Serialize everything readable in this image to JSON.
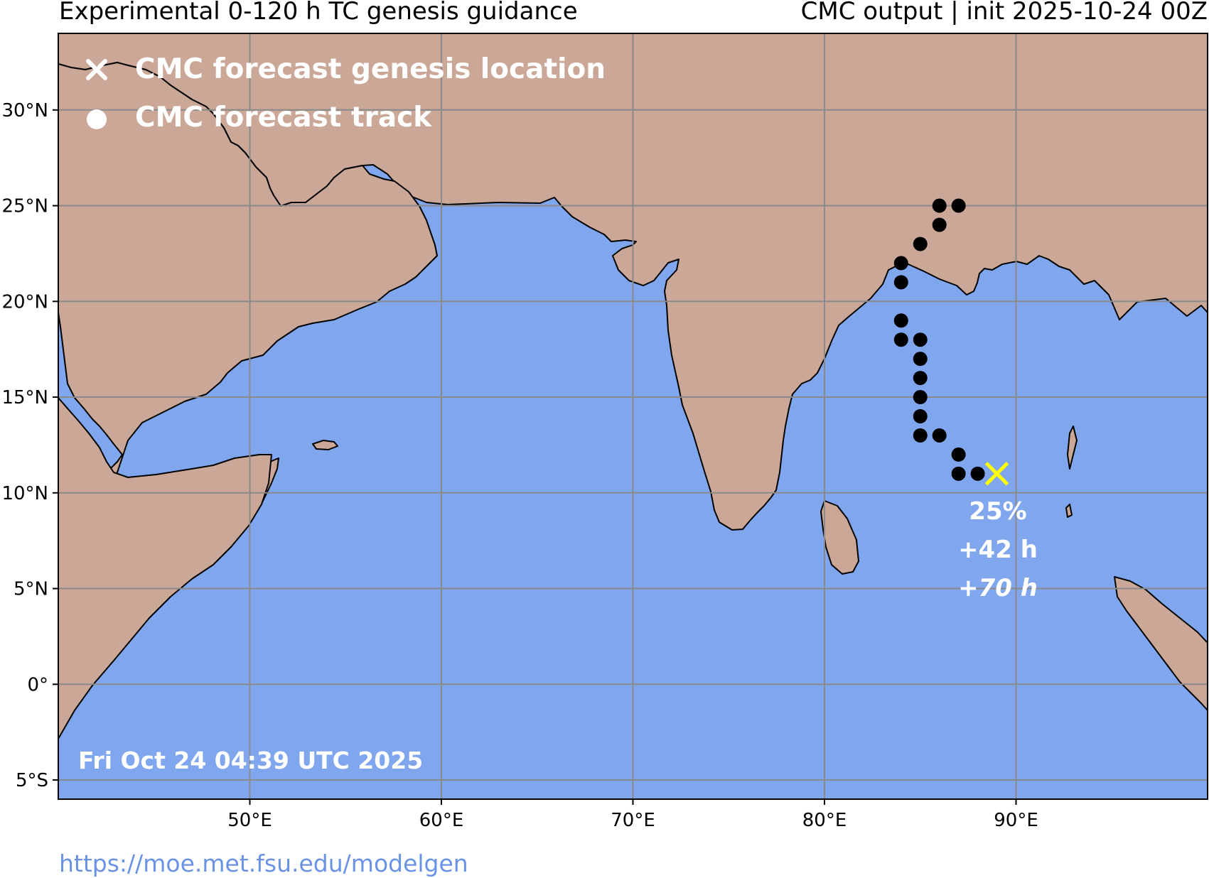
{
  "header": {
    "title_left": "Experimental 0-120 h TC genesis guidance",
    "title_right": "CMC output | init 2025-10-24 00Z"
  },
  "footer": {
    "url": "https://moe.met.fsu.edu/modelgen"
  },
  "colors": {
    "ocean": "#80a6ee",
    "land": "#cba797",
    "grid": "#8a8a8a",
    "track": "#000000",
    "genesis_marker": "#ffff00",
    "overlay_text": "#ffffff",
    "url_text": "#6a93e6"
  },
  "map": {
    "lon_range": [
      40,
      100
    ],
    "lat_range": [
      -6,
      34
    ],
    "grid_lons": [
      50,
      60,
      70,
      80,
      90
    ],
    "grid_lats": [
      -5,
      0,
      5,
      10,
      15,
      20,
      25,
      30
    ],
    "lon_tick_labels": [
      "50°E",
      "60°E",
      "70°E",
      "80°E",
      "90°E"
    ],
    "lat_tick_labels": [
      "5°S",
      "0°",
      "5°N",
      "10°N",
      "15°N",
      "20°N",
      "25°N",
      "30°N"
    ]
  },
  "legend": {
    "genesis_label": "CMC forecast genesis location",
    "genesis_icon": "x-mark-icon",
    "track_label": "CMC forecast track",
    "track_icon": "filled-circle-icon"
  },
  "genesis": {
    "lon": 89,
    "lat": 11,
    "probability": "25%",
    "lead_time": "+42 h",
    "lead_time_2": "+70 h"
  },
  "track_points": [
    {
      "lon": 88,
      "lat": 11
    },
    {
      "lon": 87,
      "lat": 11
    },
    {
      "lon": 87,
      "lat": 12
    },
    {
      "lon": 86,
      "lat": 13
    },
    {
      "lon": 85,
      "lat": 13
    },
    {
      "lon": 85,
      "lat": 14
    },
    {
      "lon": 85,
      "lat": 15
    },
    {
      "lon": 85,
      "lat": 16
    },
    {
      "lon": 85,
      "lat": 17
    },
    {
      "lon": 85,
      "lat": 18
    },
    {
      "lon": 84,
      "lat": 18
    },
    {
      "lon": 84,
      "lat": 19
    },
    {
      "lon": 84,
      "lat": 21
    },
    {
      "lon": 84,
      "lat": 22
    },
    {
      "lon": 85,
      "lat": 23
    },
    {
      "lon": 86,
      "lat": 24
    },
    {
      "lon": 86,
      "lat": 25
    },
    {
      "lon": 87,
      "lat": 25
    }
  ],
  "timestamp": "Fri Oct 24 04:39 UTC 2025"
}
